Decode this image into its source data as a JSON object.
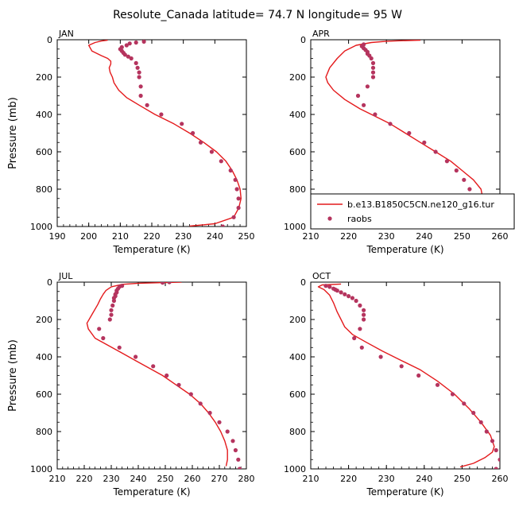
{
  "figure": {
    "title": "Resolute_Canada   latitude= 74.7 N longitude= 95 W"
  },
  "colors": {
    "model_line": "#e41a1c",
    "raobs_marker": "#b5345e",
    "axes": "#000000"
  },
  "chart_data": [
    {
      "type": "line",
      "panel": "JAN",
      "xlabel": "Temperature (K)",
      "ylabel": "Pressure (mb)",
      "xlim": [
        190,
        250
      ],
      "xticks": [
        190,
        200,
        210,
        220,
        230,
        240,
        250
      ],
      "ylim": [
        1000,
        0
      ],
      "yticks": [
        0,
        200,
        400,
        600,
        800,
        1000
      ],
      "series": [
        {
          "name": "b.e13.B1850C5CN.ne120_g16.tur",
          "kind": "line",
          "points": [
            [
              206,
              2
            ],
            [
              204,
              7
            ],
            [
              202,
              15
            ],
            [
              200,
              30
            ],
            [
              201,
              60
            ],
            [
              204,
              85
            ],
            [
              206,
              100
            ],
            [
              207,
              115
            ],
            [
              207,
              130
            ],
            [
              206.5,
              150
            ],
            [
              206.8,
              175
            ],
            [
              207.5,
              200
            ],
            [
              208,
              230
            ],
            [
              209.5,
              270
            ],
            [
              212,
              310
            ],
            [
              216,
              350
            ],
            [
              221,
              400
            ],
            [
              227,
              450
            ],
            [
              232,
              500
            ],
            [
              236.5,
              550
            ],
            [
              240.5,
              600
            ],
            [
              243.5,
              650
            ],
            [
              245.5,
              700
            ],
            [
              247,
              750
            ],
            [
              248,
              800
            ],
            [
              248.3,
              850
            ],
            [
              247.6,
              900
            ],
            [
              246,
              950
            ],
            [
              240,
              985
            ],
            [
              232,
              998
            ]
          ]
        },
        {
          "name": "raobs",
          "kind": "scatter",
          "points": [
            [
              217.5,
              10
            ],
            [
              215,
              15
            ],
            [
              213,
              20
            ],
            [
              212,
              30
            ],
            [
              210.5,
              40
            ],
            [
              210,
              50
            ],
            [
              210.5,
              60
            ],
            [
              211,
              70
            ],
            [
              211.5,
              80
            ],
            [
              212.5,
              90
            ],
            [
              213.5,
              100
            ],
            [
              215,
              125
            ],
            [
              215.5,
              150
            ],
            [
              216,
              175
            ],
            [
              216,
              200
            ],
            [
              216.5,
              250
            ],
            [
              216.5,
              300
            ],
            [
              218.5,
              350
            ],
            [
              223,
              400
            ],
            [
              229.5,
              450
            ],
            [
              233,
              500
            ],
            [
              235.5,
              550
            ],
            [
              239,
              600
            ],
            [
              242,
              650
            ],
            [
              245,
              700
            ],
            [
              246.5,
              750
            ],
            [
              247,
              800
            ],
            [
              247.5,
              850
            ],
            [
              247.5,
              900
            ],
            [
              246,
              950
            ],
            [
              242.5,
              1000
            ]
          ]
        }
      ]
    },
    {
      "type": "line",
      "panel": "APR",
      "xlabel": "Temperature (K)",
      "ylabel": "",
      "xlim": [
        210,
        260
      ],
      "xticks": [
        210,
        220,
        230,
        240,
        250,
        260
      ],
      "ylim": [
        1000,
        0
      ],
      "yticks": [
        0,
        200,
        400,
        600,
        800,
        1000
      ],
      "legend": {
        "position": "lower-right",
        "entries": [
          {
            "label": "b.e13.B1850C5CN.ne120_g16.tur",
            "kind": "line"
          },
          {
            "label": "raobs",
            "kind": "scatter"
          }
        ]
      },
      "series": [
        {
          "name": "b.e13.B1850C5CN.ne120_g16.tur",
          "kind": "line",
          "points": [
            [
              239,
              2
            ],
            [
              234,
              5
            ],
            [
              230,
              8
            ],
            [
              226,
              15
            ],
            [
              222,
              30
            ],
            [
              219,
              60
            ],
            [
              217,
              100
            ],
            [
              215,
              150
            ],
            [
              214,
              200
            ],
            [
              214.5,
              230
            ],
            [
              216,
              270
            ],
            [
              219,
              320
            ],
            [
              223,
              370
            ],
            [
              227,
              410
            ],
            [
              231,
              450
            ],
            [
              235,
              500
            ],
            [
              239,
              550
            ],
            [
              243,
              600
            ],
            [
              247,
              650
            ],
            [
              250,
              700
            ],
            [
              253,
              750
            ],
            [
              255,
              800
            ],
            [
              255.5,
              850
            ],
            [
              255.5,
              880
            ],
            [
              254,
              930
            ],
            [
              252,
              960
            ],
            [
              249,
              985
            ],
            [
              247,
              998
            ]
          ]
        },
        {
          "name": "raobs",
          "kind": "scatter",
          "points": [
            [
              224,
              25
            ],
            [
              223.5,
              35
            ],
            [
              224,
              45
            ],
            [
              224.5,
              55
            ],
            [
              225,
              65
            ],
            [
              225,
              75
            ],
            [
              225.5,
              85
            ],
            [
              226,
              100
            ],
            [
              226.5,
              125
            ],
            [
              226.5,
              150
            ],
            [
              226.5,
              175
            ],
            [
              226.5,
              200
            ],
            [
              225,
              250
            ],
            [
              222.5,
              300
            ],
            [
              224,
              350
            ],
            [
              227,
              400
            ],
            [
              231,
              450
            ],
            [
              236,
              500
            ],
            [
              240,
              550
            ],
            [
              243,
              600
            ],
            [
              246,
              650
            ],
            [
              248.5,
              700
            ],
            [
              250.5,
              750
            ],
            [
              252,
              800
            ],
            [
              253,
              850
            ],
            [
              253.5,
              900
            ],
            [
              253,
              950
            ],
            [
              251,
              1000
            ]
          ]
        }
      ]
    },
    {
      "type": "line",
      "panel": "JUL",
      "xlabel": "Temperature (K)",
      "ylabel": "Pressure (mb)",
      "xlim": [
        210,
        280
      ],
      "xticks": [
        210,
        220,
        230,
        240,
        250,
        260,
        270,
        280
      ],
      "ylim": [
        1000,
        0
      ],
      "yticks": [
        0,
        200,
        400,
        600,
        800,
        1000
      ],
      "series": [
        {
          "name": "b.e13.B1850C5CN.ne120_g16.tur",
          "kind": "line",
          "points": [
            [
              256,
              0
            ],
            [
              248,
              3
            ],
            [
              240,
              6
            ],
            [
              234,
              12
            ],
            [
              230,
              25
            ],
            [
              228,
              45
            ],
            [
              227,
              65
            ],
            [
              226,
              90
            ],
            [
              225,
              120
            ],
            [
              223,
              170
            ],
            [
              221,
              220
            ],
            [
              221.5,
              250
            ],
            [
              224,
              300
            ],
            [
              229,
              340
            ],
            [
              234,
              380
            ],
            [
              239,
              420
            ],
            [
              244,
              460
            ],
            [
              249,
              500
            ],
            [
              254,
              550
            ],
            [
              259,
              600
            ],
            [
              263,
              650
            ],
            [
              266,
              700
            ],
            [
              268.5,
              750
            ],
            [
              270.5,
              800
            ],
            [
              272,
              850
            ],
            [
              273,
              900
            ],
            [
              273,
              950
            ],
            [
              272.5,
              985
            ]
          ]
        },
        {
          "name": "raobs",
          "kind": "scatter",
          "points": [
            [
              251.5,
              0
            ],
            [
              249,
              3
            ],
            [
              234,
              20
            ],
            [
              233,
              25
            ],
            [
              232.5,
              35
            ],
            [
              232,
              45
            ],
            [
              232,
              55
            ],
            [
              231.5,
              65
            ],
            [
              231.5,
              75
            ],
            [
              231,
              85
            ],
            [
              231,
              100
            ],
            [
              230.5,
              125
            ],
            [
              230,
              150
            ],
            [
              230,
              175
            ],
            [
              229.5,
              200
            ],
            [
              225.5,
              250
            ],
            [
              227,
              300
            ],
            [
              233,
              350
            ],
            [
              239,
              400
            ],
            [
              245.5,
              450
            ],
            [
              250.5,
              500
            ],
            [
              255,
              550
            ],
            [
              259.5,
              600
            ],
            [
              263,
              650
            ],
            [
              266.5,
              700
            ],
            [
              270,
              750
            ],
            [
              273,
              800
            ],
            [
              275,
              850
            ],
            [
              276,
              900
            ],
            [
              277,
              950
            ],
            [
              277.5,
              1000
            ]
          ]
        }
      ]
    },
    {
      "type": "line",
      "panel": "OCT",
      "xlabel": "Temperature (K)",
      "ylabel": "",
      "xlim": [
        210,
        260
      ],
      "xticks": [
        210,
        220,
        230,
        240,
        250,
        260
      ],
      "ylim": [
        1000,
        0
      ],
      "yticks": [
        0,
        200,
        400,
        600,
        800,
        1000
      ],
      "series": [
        {
          "name": "b.e13.B1850C5CN.ne120_g16.tur",
          "kind": "line",
          "points": [
            [
              218,
              10
            ],
            [
              213,
              15
            ],
            [
              212,
              25
            ],
            [
              213.5,
              40
            ],
            [
              215,
              70
            ],
            [
              216,
              110
            ],
            [
              217,
              160
            ],
            [
              218,
              200
            ],
            [
              219,
              240
            ],
            [
              221,
              280
            ],
            [
              224.5,
              320
            ],
            [
              229,
              370
            ],
            [
              234,
              420
            ],
            [
              239,
              470
            ],
            [
              243.5,
              530
            ],
            [
              248,
              600
            ],
            [
              252,
              680
            ],
            [
              255,
              750
            ],
            [
              257.5,
              820
            ],
            [
              258.5,
              880
            ],
            [
              258,
              910
            ],
            [
              256,
              940
            ],
            [
              253,
              970
            ],
            [
              249.5,
              990
            ]
          ]
        },
        {
          "name": "raobs",
          "kind": "scatter",
          "points": [
            [
              214,
              20
            ],
            [
              215,
              25
            ],
            [
              216,
              35
            ],
            [
              216.5,
              40
            ],
            [
              217,
              45
            ],
            [
              218,
              55
            ],
            [
              219,
              65
            ],
            [
              220,
              75
            ],
            [
              221,
              85
            ],
            [
              222,
              100
            ],
            [
              223,
              125
            ],
            [
              224,
              150
            ],
            [
              224,
              175
            ],
            [
              224,
              200
            ],
            [
              223,
              250
            ],
            [
              221.5,
              300
            ],
            [
              223.5,
              350
            ],
            [
              228.5,
              400
            ],
            [
              234,
              450
            ],
            [
              238.5,
              500
            ],
            [
              243.5,
              550
            ],
            [
              247.5,
              600
            ],
            [
              250.5,
              650
            ],
            [
              253,
              700
            ],
            [
              255,
              750
            ],
            [
              256.5,
              800
            ],
            [
              258,
              850
            ],
            [
              259,
              900
            ],
            [
              260,
              950
            ],
            [
              259,
              1000
            ]
          ]
        }
      ]
    }
  ]
}
